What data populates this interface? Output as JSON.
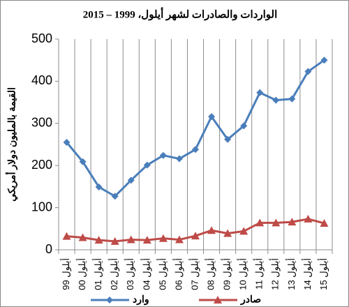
{
  "chart_data": {
    "type": "line",
    "title": "الواردات والصادرات لشهر أيلول، 1999 – 2015",
    "y_label": "القيمة بالمليون دولار أمريكي",
    "categories": [
      "أيلول 99",
      "أيلول 00",
      "أيلول 01",
      "أيلول 02",
      "أيلول 03",
      "أيلول 04",
      "أيلول 05",
      "أيلول 06",
      "أيلول 07",
      "أيلول 08",
      "أيلول 09",
      "أيلول 10",
      "أيلول 11",
      "أيلول 12",
      "أيلول 13",
      "أيلول 14",
      "أيلول 15"
    ],
    "series": [
      {
        "name": "وارد",
        "color": "#4a7ebb",
        "marker": "diamond",
        "values": [
          255,
          209,
          149,
          127,
          165,
          201,
          224,
          216,
          238,
          316,
          262,
          294,
          373,
          355,
          358,
          423,
          450
        ]
      },
      {
        "name": "صادر",
        "color": "#be4b48",
        "marker": "triangle",
        "values": [
          32,
          29,
          23,
          20,
          24,
          23,
          27,
          24,
          33,
          46,
          39,
          44,
          64,
          64,
          66,
          73,
          63
        ]
      }
    ],
    "ylim": [
      0,
      500
    ],
    "yticks": [
      0,
      100,
      200,
      300,
      400,
      500
    ],
    "vertical_grid": true,
    "legend": "bottom"
  }
}
